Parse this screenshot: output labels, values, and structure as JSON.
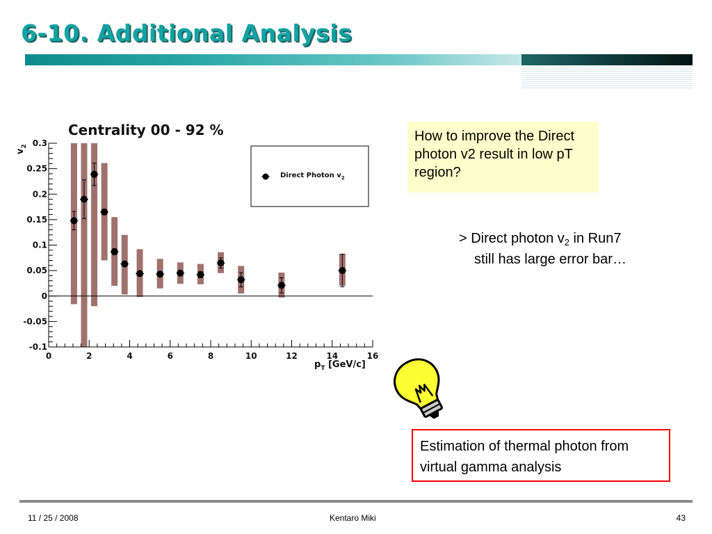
{
  "slide": {
    "title": "6-10. Additional Analysis",
    "question": "How to improve the Direct photon v2 result in low pT region?",
    "comment": {
      "line1_prefix": "> Direct photon v",
      "line1_sub": "2",
      "line1_suffix": " in Run7",
      "line2": "still has large error bar…"
    },
    "answer": "Estimation of thermal photon from virtual gamma analysis",
    "icons": [
      "lightbulb-icon"
    ]
  },
  "footer": {
    "date": "11 / 25 / 2008",
    "author": "Kentaro Miki",
    "page": "43"
  },
  "colors": {
    "title": "#12a3a3",
    "title_shadow": "#1c5a5a",
    "systematic_band": "#a0726e",
    "marker": "#000000",
    "question_bg": "#ffffcc",
    "answer_border": "#ff0000",
    "bulb": "#ffff33"
  },
  "chart_data": {
    "type": "scatter",
    "title": "Centrality 00 - 92 %",
    "xlabel_main": "p",
    "xlabel_sub": "T",
    "xlabel_unit": " [GeV/c]",
    "ylabel_main": "v",
    "ylabel_sub": "2",
    "xlim": [
      0,
      16
    ],
    "ylim": [
      -0.1,
      0.3
    ],
    "xticks": [
      0,
      2,
      4,
      6,
      8,
      10,
      12,
      14,
      16
    ],
    "xtick_labels": [
      "0",
      "2",
      "4",
      "6",
      "8",
      "10",
      "12",
      "14",
      "16"
    ],
    "yticks": [
      -0.1,
      -0.05,
      0,
      0.05,
      0.1,
      0.15,
      0.2,
      0.25,
      0.3
    ],
    "ytick_labels": [
      "-0.1",
      "-0.05",
      "0",
      "0.05",
      "0.1",
      "0.15",
      "0.2",
      "0.25",
      "0.3"
    ],
    "zero_line": true,
    "legend": {
      "placement": "top-right",
      "label_main": "Direct Photon v",
      "label_sub": "2"
    },
    "series": [
      {
        "name": "Direct Photon v2",
        "x": [
          1.25,
          1.75,
          2.25,
          2.75,
          3.25,
          3.75,
          4.5,
          5.5,
          6.5,
          7.5,
          8.5,
          9.5,
          11.5,
          14.5
        ],
        "y": [
          0.148,
          0.19,
          0.239,
          0.165,
          0.087,
          0.063,
          0.044,
          0.043,
          0.045,
          0.042,
          0.065,
          0.032,
          0.021,
          0.05
        ],
        "stat_err": [
          0.018,
          0.038,
          0.022,
          0.005,
          0.006,
          0.004,
          0.004,
          0.004,
          0.005,
          0.006,
          0.01,
          0.014,
          0.015,
          0.032
        ],
        "sys_low": [
          -0.016,
          -0.1,
          -0.02,
          0.07,
          0.02,
          0.003,
          -0.002,
          0.015,
          0.024,
          0.023,
          0.045,
          0.005,
          -0.003,
          0.02
        ],
        "sys_high": [
          0.3,
          0.3,
          0.3,
          0.261,
          0.155,
          0.12,
          0.092,
          0.073,
          0.066,
          0.063,
          0.086,
          0.059,
          0.046,
          0.083
        ]
      }
    ]
  }
}
